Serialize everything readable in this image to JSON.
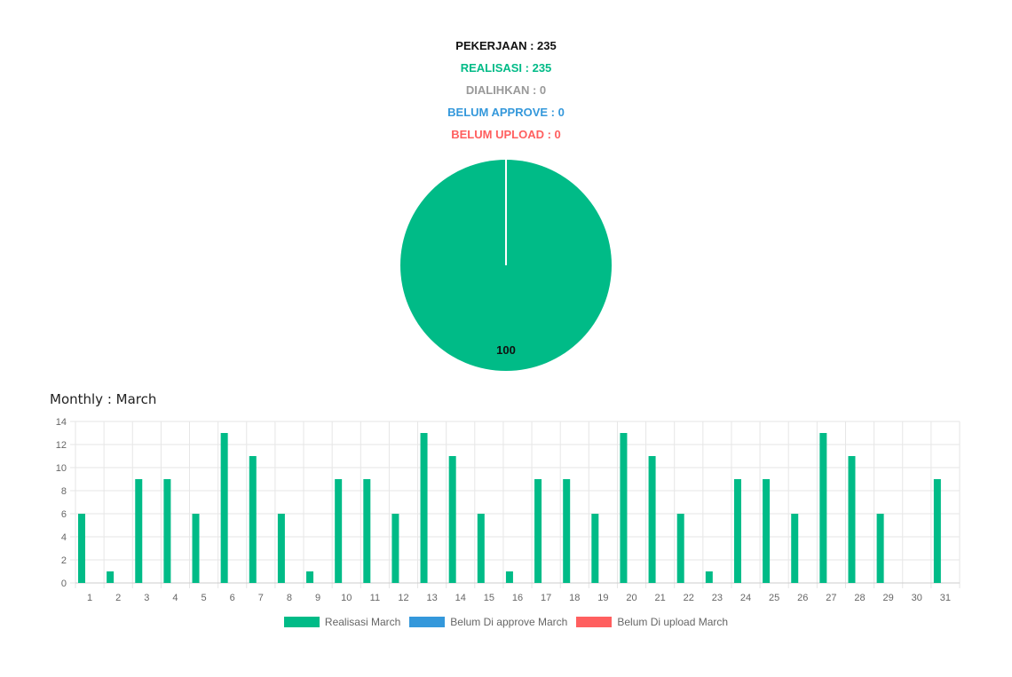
{
  "stats": {
    "pekerjaan": "PEKERJAAN : 235",
    "realisasi": "REALISASI : 235",
    "dialihkan": "DIALIHKAN : 0",
    "belum_approve": "BELUM APPROVE : 0",
    "belum_upload": "BELUM UPLOAD : 0"
  },
  "colors": {
    "pekerjaan": "#111111",
    "realisasi": "#00bb87",
    "dialihkan": "#999999",
    "belum_approve": "#3498db",
    "belum_upload": "#ff5f5f",
    "grid": "#e6e6e6",
    "tick": "#666666"
  },
  "monthly_title": "Monthly : March",
  "chart_data": [
    {
      "type": "pie",
      "values": [
        100
      ],
      "data_labels": [
        "100"
      ],
      "colors": [
        "#00bb87"
      ]
    },
    {
      "type": "bar",
      "categories": [
        "1",
        "2",
        "3",
        "4",
        "5",
        "6",
        "7",
        "8",
        "9",
        "10",
        "11",
        "12",
        "13",
        "14",
        "15",
        "16",
        "17",
        "18",
        "19",
        "20",
        "21",
        "22",
        "23",
        "24",
        "25",
        "26",
        "27",
        "28",
        "29",
        "30",
        "31"
      ],
      "ylim": [
        0,
        14
      ],
      "yticks": [
        0,
        2,
        4,
        6,
        8,
        10,
        12,
        14
      ],
      "grid": true,
      "legend_position": "bottom",
      "series": [
        {
          "name": "Realisasi March",
          "color": "#00bb87",
          "values": [
            6,
            1,
            9,
            9,
            6,
            13,
            11,
            6,
            1,
            9,
            9,
            6,
            13,
            11,
            6,
            1,
            9,
            9,
            6,
            13,
            11,
            6,
            1,
            9,
            9,
            6,
            13,
            11,
            6,
            0,
            9
          ]
        },
        {
          "name": "Belum Di approve March",
          "color": "#3498db",
          "values": [
            0,
            0,
            0,
            0,
            0,
            0,
            0,
            0,
            0,
            0,
            0,
            0,
            0,
            0,
            0,
            0,
            0,
            0,
            0,
            0,
            0,
            0,
            0,
            0,
            0,
            0,
            0,
            0,
            0,
            0,
            0
          ]
        },
        {
          "name": "Belum Di upload March",
          "color": "#ff5f5f",
          "values": [
            0,
            0,
            0,
            0,
            0,
            0,
            0,
            0,
            0,
            0,
            0,
            0,
            0,
            0,
            0,
            0,
            0,
            0,
            0,
            0,
            0,
            0,
            0,
            0,
            0,
            0,
            0,
            0,
            0,
            0,
            0
          ]
        }
      ]
    }
  ]
}
